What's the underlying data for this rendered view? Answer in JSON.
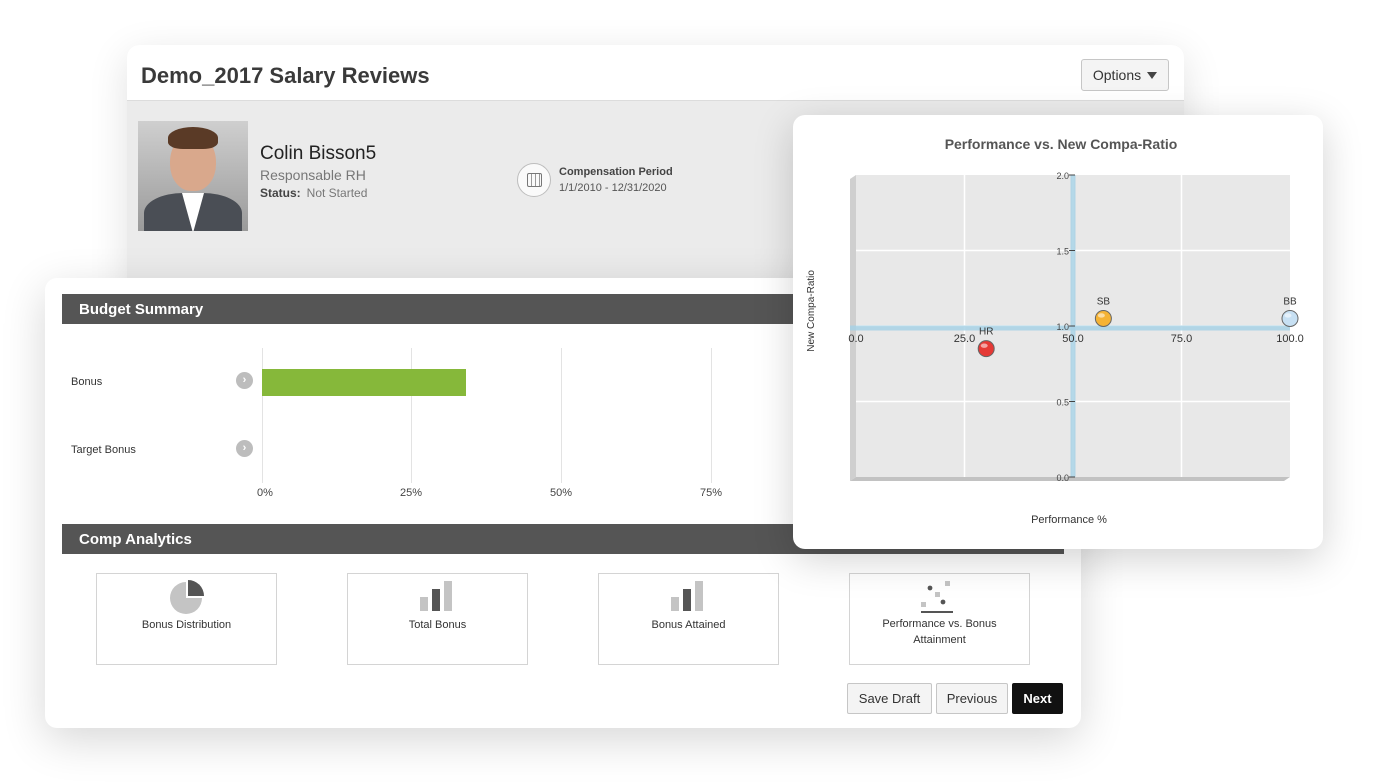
{
  "review": {
    "title": "Demo_2017 Salary Reviews",
    "options_label": "Options",
    "employee": {
      "name": "Colin Bisson5",
      "role": "Responsable RH",
      "status_label": "Status:",
      "status_value": "Not Started"
    },
    "compensation": {
      "label": "Compensation Period",
      "value": "1/1/2010 - 12/31/2020"
    }
  },
  "budget": {
    "title": "Budget Summary",
    "rows": [
      {
        "label": "Bonus",
        "value_pct": 34
      },
      {
        "label": "Target Bonus",
        "value_pct": 0
      }
    ],
    "ticks": [
      "0%",
      "25%",
      "50%",
      "75%"
    ],
    "bar_color": "#86b83a"
  },
  "analytics": {
    "title": "Comp Analytics",
    "tiles": [
      {
        "label": "Bonus Distribution",
        "icon": "pie-chart-icon"
      },
      {
        "label": "Total Bonus",
        "icon": "bar-chart-icon"
      },
      {
        "label": "Bonus Attained",
        "icon": "bar-chart-icon"
      },
      {
        "label": "Performance vs. Bonus Attainment",
        "icon": "scatter-chart-icon"
      }
    ]
  },
  "actions": {
    "save_draft": "Save Draft",
    "previous": "Previous",
    "next": "Next"
  },
  "chart_data": {
    "type": "scatter",
    "title": "Performance vs. New Compa-Ratio",
    "xlabel": "Performance %",
    "ylabel": "New Compa-Ratio",
    "xlim": [
      0,
      100
    ],
    "ylim": [
      0,
      2
    ],
    "x_ticks": [
      "0.0",
      "25.0",
      "50.0",
      "75.0",
      "100.0"
    ],
    "y_ticks": [
      "2.0",
      "1.5",
      "1.0",
      "0.5",
      "0.0"
    ],
    "grid": true,
    "points": [
      {
        "label": "HR",
        "x": 30,
        "y": 0.85,
        "color": "#e53935"
      },
      {
        "label": "SB",
        "x": 57,
        "y": 1.05,
        "color": "#f5b335"
      },
      {
        "label": "BB",
        "x": 100,
        "y": 1.05,
        "color": "#c7e0f3"
      }
    ]
  }
}
